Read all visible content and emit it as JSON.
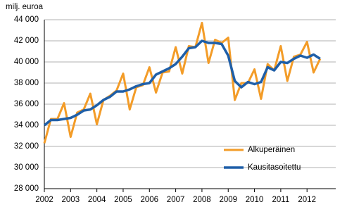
{
  "chart_data": {
    "type": "line",
    "y_label": "milj. euroa",
    "categories": [
      "2002",
      null,
      null,
      null,
      "2003",
      null,
      null,
      null,
      "2004",
      null,
      null,
      null,
      "2005",
      null,
      null,
      null,
      "2006",
      null,
      null,
      null,
      "2007",
      null,
      null,
      null,
      "2008",
      null,
      null,
      null,
      "2009",
      null,
      null,
      null,
      "2010",
      null,
      null,
      null,
      "2011",
      null,
      null,
      null,
      "2012",
      null,
      null
    ],
    "series": [
      {
        "name": "Alkuperäinen",
        "color": "#f39c28",
        "values": [
          32300,
          34600,
          34600,
          36100,
          32900,
          35200,
          35500,
          37000,
          34100,
          36400,
          36800,
          37300,
          38900,
          35500,
          37600,
          37800,
          39500,
          37100,
          39000,
          39100,
          41400,
          38900,
          41500,
          41400,
          43700,
          39900,
          42100,
          41800,
          42300,
          36400,
          38000,
          38000,
          39300,
          36500,
          39800,
          39200,
          41500,
          38200,
          40500,
          40700,
          41900,
          39000,
          40300
        ]
      },
      {
        "name": "Kausitasoitettu",
        "color": "#1f5fa8",
        "values": [
          34000,
          34500,
          34500,
          34600,
          34700,
          35000,
          35400,
          35500,
          35900,
          36400,
          36700,
          37200,
          37200,
          37400,
          37700,
          37900,
          38000,
          38800,
          39100,
          39400,
          39800,
          40500,
          41300,
          41400,
          42000,
          41800,
          41800,
          41700,
          40600,
          38200,
          37600,
          38100,
          37900,
          38100,
          39500,
          39200,
          40000,
          39900,
          40300,
          40600,
          40400,
          40700,
          40300
        ]
      }
    ],
    "ylim": [
      28000,
      44000
    ],
    "yticks": [
      {
        "value": 28000,
        "label": "28 000"
      },
      {
        "value": 30000,
        "label": "30 000"
      },
      {
        "value": 32000,
        "label": "32 000"
      },
      {
        "value": 34000,
        "label": "34 000"
      },
      {
        "value": 36000,
        "label": "36 000"
      },
      {
        "value": 38000,
        "label": "38 000"
      },
      {
        "value": 40000,
        "label": "40 000"
      },
      {
        "value": 42000,
        "label": "42 000"
      },
      {
        "value": 44000,
        "label": "44 000"
      }
    ],
    "grid": true,
    "legend": "lower right"
  }
}
